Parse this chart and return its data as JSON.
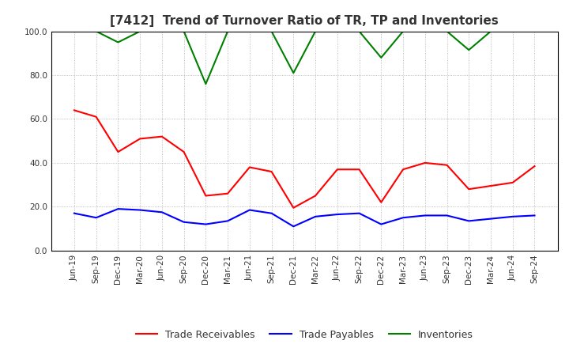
{
  "title": "[7412]  Trend of Turnover Ratio of TR, TP and Inventories",
  "ylim": [
    0.0,
    100.0
  ],
  "yticks": [
    0.0,
    20.0,
    40.0,
    60.0,
    80.0,
    100.0
  ],
  "x_labels": [
    "Jun-19",
    "Sep-19",
    "Dec-19",
    "Mar-20",
    "Jun-20",
    "Sep-20",
    "Dec-20",
    "Mar-21",
    "Jun-21",
    "Sep-21",
    "Dec-21",
    "Mar-22",
    "Jun-22",
    "Sep-22",
    "Dec-22",
    "Mar-23",
    "Jun-23",
    "Sep-23",
    "Dec-23",
    "Mar-24",
    "Jun-24",
    "Sep-24"
  ],
  "trade_receivables": [
    64.0,
    61.0,
    45.0,
    51.0,
    52.0,
    45.0,
    25.0,
    26.0,
    38.0,
    36.0,
    19.5,
    25.0,
    37.0,
    37.0,
    22.0,
    37.0,
    40.0,
    39.0,
    28.0,
    29.5,
    31.0,
    38.5
  ],
  "trade_payables": [
    17.0,
    15.0,
    19.0,
    18.5,
    17.5,
    13.0,
    12.0,
    13.5,
    18.5,
    17.0,
    11.0,
    15.5,
    16.5,
    17.0,
    12.0,
    15.0,
    16.0,
    16.0,
    13.5,
    14.5,
    15.5,
    16.0
  ],
  "inventories": [
    100.0,
    100.0,
    95.0,
    100.0,
    100.0,
    100.0,
    76.0,
    100.0,
    100.0,
    100.0,
    81.0,
    100.0,
    100.0,
    100.0,
    88.0,
    100.0,
    100.0,
    100.0,
    91.5,
    100.0,
    100.0,
    100.0
  ],
  "tr_color": "#ff0000",
  "tp_color": "#0000ff",
  "inv_color": "#008000",
  "legend_labels": [
    "Trade Receivables",
    "Trade Payables",
    "Inventories"
  ],
  "background_color": "#ffffff",
  "grid_color": "#aaaaaa",
  "title_color": "#333333",
  "title_fontsize": 11,
  "tick_fontsize": 7.5,
  "legend_fontsize": 9,
  "linewidth": 1.5
}
